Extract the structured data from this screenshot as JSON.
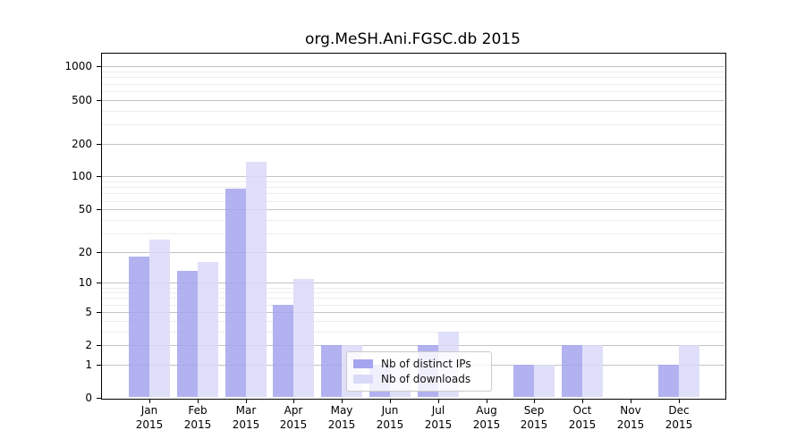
{
  "title": "org.MeSH.Ani.FGSC.db 2015",
  "legend": {
    "items": [
      {
        "label": "Nb of distinct IPs"
      },
      {
        "label": "Nb of downloads"
      }
    ]
  },
  "chart_data": {
    "type": "bar",
    "title": "org.MeSH.Ani.FGSC.db 2015",
    "categories": [
      "Jan 2015",
      "Feb 2015",
      "Mar 2015",
      "Apr 2015",
      "May 2015",
      "Jun 2015",
      "Jul 2015",
      "Aug 2015",
      "Sep 2015",
      "Oct 2015",
      "Nov 2015",
      "Dec 2015"
    ],
    "month_labels": [
      "Jan",
      "Feb",
      "Mar",
      "Apr",
      "May",
      "Jun",
      "Jul",
      "Aug",
      "Sep",
      "Oct",
      "Nov",
      "Dec"
    ],
    "year_label": "2015",
    "series": [
      {
        "name": "Nb of distinct IPs",
        "color": "#a5a5ef",
        "values": [
          18,
          13,
          77,
          6,
          2,
          1,
          2,
          0,
          1,
          2,
          0,
          1
        ]
      },
      {
        "name": "Nb of downloads",
        "color": "#d9d9f8",
        "values": [
          26,
          16,
          137,
          11,
          2,
          1,
          3,
          0,
          1,
          2,
          0,
          2
        ]
      }
    ],
    "xlabel": "",
    "ylabel": "",
    "y_axis": {
      "scale": "log10(1+v)",
      "ticks": [
        0,
        1,
        2,
        5,
        10,
        20,
        50,
        100,
        200,
        500,
        1000
      ],
      "minor_gridlines": [
        3,
        4,
        6,
        7,
        8,
        9,
        30,
        40,
        60,
        70,
        80,
        90,
        300,
        400,
        600,
        700,
        800,
        900
      ],
      "ylim": [
        0,
        1000
      ]
    },
    "grid": true,
    "legend_position": "lower center"
  },
  "colors": {
    "bar_distinct_ips": "#a5a5ef",
    "bar_downloads": "#d9d9f8",
    "grid_major": "#c3c3c3",
    "grid_minor": "#ededed",
    "axis_spine": "#000000",
    "legend_border": "#cccccc",
    "background": "#ffffff"
  }
}
